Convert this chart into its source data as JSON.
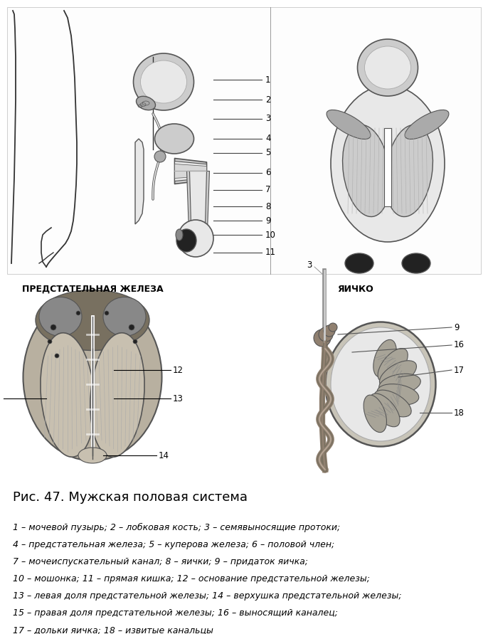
{
  "title": "Рис. 47. Мужская половая система",
  "caption_lines": [
    "1 – мочевой пузырь; 2 – лобковая кость; 3 – семявыносящие протоки;",
    "4 – предстательная железа; 5 – куперова железа; 6 – половой член;",
    "7 – мочеиспускательный канал; 8 – яички; 9 – придаток яичка;",
    "10 – мошонка; 11 – прямая кишка; 12 – основание предстательной железы;",
    "13 – левая доля предстательной железы; 14 – верхушка предстательной железы;",
    "15 – правая доля предстательной железы; 16 – выносящий каналец;",
    "17 – дольки яичка; 18 – извитые канальцы"
  ],
  "label_prostate": "ПРЕДСТАТЕЛЬНАЯ ЖЕЛЕЗА",
  "label_testis": "ЯИЧКО",
  "bg_color": "#ffffff",
  "label_color": "#000000",
  "title_fontsize": 13,
  "caption_fontsize": 9,
  "numbers_top": [
    "1",
    "2",
    "3",
    "4",
    "5",
    "6",
    "7",
    "8",
    "9",
    "10",
    "11"
  ],
  "line_colors": {
    "body": "#333333",
    "anatomy": "#555555",
    "light": "#888888",
    "dark": "#222222",
    "mid": "#666666"
  },
  "gray_shades": {
    "light": "#e8e8e8",
    "mid_light": "#cccccc",
    "mid": "#aaaaaa",
    "mid_dark": "#888888",
    "dark": "#555555",
    "very_dark": "#222222",
    "prostate_bg": "#b8b0a0",
    "prostate_lobe": "#c8c0b0",
    "prostate_dark": "#787060",
    "testis_bg": "#c8c4b8",
    "testis_lobule": "#a8a498",
    "epi_color": "#908070"
  }
}
